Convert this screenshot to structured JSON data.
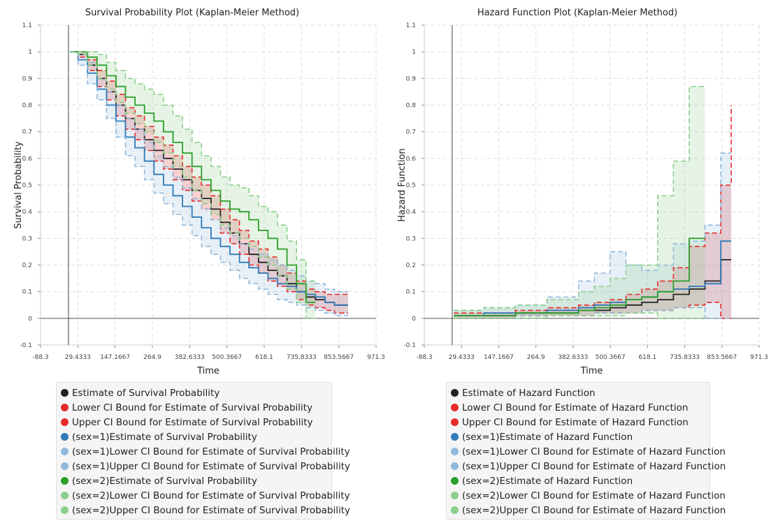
{
  "colors": {
    "overall": "#222222",
    "ci": "#e52b2b",
    "s1": "#2f7ab8",
    "s1ci": "#92b9db",
    "s2": "#2aa02a",
    "s2ci": "#8ccf8c"
  },
  "chart_data": [
    {
      "type": "line",
      "title": "Survival Probability Plot (Kaplan-Meier Method)",
      "xlabel": "Time",
      "ylabel": "Survival Probability",
      "xlim": [
        -88.3,
        971.3
      ],
      "ylim": [
        -0.1,
        1.1
      ],
      "x_ticks": [
        "-88.3",
        "29.4333",
        "147.1667",
        "264.9",
        "382.6333",
        "500.3667",
        "618.1",
        "735.8333",
        "853.5667",
        "971.3"
      ],
      "y_ticks": [
        "-0.1",
        "0",
        "0.1",
        "0.2",
        "0.3",
        "0.4",
        "0.5",
        "0.6",
        "0.7",
        "0.8",
        "0.9",
        "1",
        "1.1"
      ],
      "grid": true,
      "legend_position": "bottom",
      "series": [
        {
          "name": "Estimate of Survival Probability",
          "color": "overall",
          "dash": false,
          "x": [
            5,
            30,
            60,
            90,
            120,
            150,
            180,
            210,
            240,
            270,
            300,
            330,
            360,
            390,
            420,
            450,
            480,
            510,
            540,
            570,
            600,
            630,
            660,
            690,
            720,
            750,
            780,
            810,
            840,
            883
          ],
          "y": [
            1.0,
            0.99,
            0.95,
            0.9,
            0.85,
            0.8,
            0.75,
            0.71,
            0.67,
            0.63,
            0.6,
            0.56,
            0.52,
            0.48,
            0.45,
            0.41,
            0.36,
            0.32,
            0.28,
            0.24,
            0.21,
            0.18,
            0.16,
            0.13,
            0.1,
            0.08,
            0.07,
            0.06,
            0.05,
            0.05
          ]
        },
        {
          "name": "Lower CI Bound for Estimate of Survival Probability",
          "color": "ci",
          "dash": true,
          "x": [
            5,
            30,
            60,
            90,
            120,
            150,
            180,
            210,
            240,
            270,
            300,
            330,
            360,
            390,
            420,
            450,
            480,
            510,
            540,
            570,
            600,
            630,
            660,
            690,
            720,
            750,
            780,
            810,
            840,
            883
          ],
          "y": [
            1.0,
            0.98,
            0.93,
            0.87,
            0.82,
            0.76,
            0.71,
            0.67,
            0.63,
            0.59,
            0.56,
            0.52,
            0.48,
            0.44,
            0.41,
            0.37,
            0.32,
            0.28,
            0.24,
            0.2,
            0.17,
            0.14,
            0.12,
            0.1,
            0.07,
            0.05,
            0.04,
            0.03,
            0.02,
            0.02
          ]
        },
        {
          "name": "Upper CI Bound for Estimate of Survival Probability",
          "color": "ci",
          "dash": true,
          "x": [
            5,
            30,
            60,
            90,
            120,
            150,
            180,
            210,
            240,
            270,
            300,
            330,
            360,
            390,
            420,
            450,
            480,
            510,
            540,
            570,
            600,
            630,
            660,
            690,
            720,
            750,
            780,
            810,
            840,
            883
          ],
          "y": [
            1.0,
            1.0,
            0.97,
            0.93,
            0.89,
            0.84,
            0.79,
            0.76,
            0.72,
            0.68,
            0.65,
            0.61,
            0.57,
            0.53,
            0.5,
            0.46,
            0.41,
            0.37,
            0.33,
            0.29,
            0.26,
            0.23,
            0.2,
            0.17,
            0.14,
            0.11,
            0.1,
            0.09,
            0.09,
            0.09
          ]
        },
        {
          "name": "(sex=1)Estimate of Survival Probability",
          "color": "s1",
          "dash": false,
          "x": [
            5,
            30,
            60,
            90,
            120,
            150,
            180,
            210,
            240,
            270,
            300,
            330,
            360,
            390,
            420,
            450,
            480,
            510,
            540,
            570,
            600,
            630,
            660,
            690,
            720,
            750,
            780,
            810,
            840,
            883
          ],
          "y": [
            1.0,
            0.97,
            0.92,
            0.86,
            0.8,
            0.74,
            0.68,
            0.64,
            0.59,
            0.54,
            0.5,
            0.46,
            0.42,
            0.38,
            0.34,
            0.3,
            0.27,
            0.24,
            0.21,
            0.19,
            0.17,
            0.15,
            0.13,
            0.12,
            0.1,
            0.09,
            0.08,
            0.06,
            0.05,
            0.05
          ]
        },
        {
          "name": "(sex=1)Lower CI Bound for Estimate of Survival Probability",
          "color": "s1ci",
          "dash": true,
          "x": [
            5,
            30,
            60,
            90,
            120,
            150,
            180,
            210,
            240,
            270,
            300,
            330,
            360,
            390,
            420,
            450,
            480,
            510,
            540,
            570,
            600,
            630,
            660,
            690,
            720,
            750,
            780,
            810,
            840,
            883
          ],
          "y": [
            1.0,
            0.95,
            0.88,
            0.82,
            0.75,
            0.68,
            0.61,
            0.57,
            0.52,
            0.47,
            0.43,
            0.39,
            0.35,
            0.31,
            0.27,
            0.24,
            0.21,
            0.18,
            0.15,
            0.13,
            0.11,
            0.09,
            0.07,
            0.06,
            0.05,
            0.04,
            0.03,
            0.02,
            0.01,
            0.01
          ]
        },
        {
          "name": "(sex=1)Upper CI Bound for Estimate of Survival Probability",
          "color": "s1ci",
          "dash": true,
          "x": [
            5,
            30,
            60,
            90,
            120,
            150,
            180,
            210,
            240,
            270,
            300,
            330,
            360,
            390,
            420,
            450,
            480,
            510,
            540,
            570,
            600,
            630,
            660,
            690,
            720,
            750,
            780,
            810,
            840,
            883
          ],
          "y": [
            1.0,
            0.99,
            0.96,
            0.9,
            0.85,
            0.8,
            0.75,
            0.71,
            0.66,
            0.61,
            0.57,
            0.53,
            0.49,
            0.45,
            0.41,
            0.37,
            0.34,
            0.31,
            0.28,
            0.26,
            0.24,
            0.22,
            0.2,
            0.18,
            0.16,
            0.14,
            0.13,
            0.11,
            0.1,
            0.1
          ]
        },
        {
          "name": "(sex=2)Estimate of Survival Probability",
          "color": "s2",
          "dash": false,
          "x": [
            5,
            30,
            60,
            90,
            120,
            150,
            180,
            210,
            240,
            270,
            300,
            330,
            360,
            390,
            420,
            450,
            480,
            510,
            540,
            570,
            600,
            630,
            660,
            690,
            720,
            750,
            780
          ],
          "y": [
            1.0,
            1.0,
            0.98,
            0.95,
            0.91,
            0.87,
            0.83,
            0.8,
            0.77,
            0.74,
            0.7,
            0.66,
            0.62,
            0.57,
            0.52,
            0.48,
            0.44,
            0.41,
            0.4,
            0.37,
            0.33,
            0.3,
            0.26,
            0.2,
            0.13,
            0.06,
            0.06
          ]
        },
        {
          "name": "(sex=2)Lower CI Bound for Estimate of Survival Probability",
          "color": "s2ci",
          "dash": true,
          "x": [
            5,
            30,
            60,
            90,
            120,
            150,
            180,
            210,
            240,
            270,
            300,
            330,
            360,
            390,
            420,
            450,
            480,
            510,
            540,
            570,
            600,
            630,
            660,
            690,
            720,
            750,
            780
          ],
          "y": [
            1.0,
            0.99,
            0.95,
            0.9,
            0.86,
            0.81,
            0.77,
            0.73,
            0.7,
            0.66,
            0.62,
            0.57,
            0.53,
            0.48,
            0.43,
            0.39,
            0.35,
            0.32,
            0.3,
            0.27,
            0.23,
            0.2,
            0.16,
            0.11,
            0.06,
            0.0,
            0.0
          ]
        },
        {
          "name": "(sex=2)Upper CI Bound for Estimate of Survival Probability",
          "color": "s2ci",
          "dash": true,
          "x": [
            5,
            30,
            60,
            90,
            120,
            150,
            180,
            210,
            240,
            270,
            300,
            330,
            360,
            390,
            420,
            450,
            480,
            510,
            540,
            570,
            600,
            630,
            660,
            690,
            720,
            750,
            780
          ],
          "y": [
            1.0,
            1.0,
            1.0,
            0.99,
            0.96,
            0.93,
            0.9,
            0.88,
            0.86,
            0.84,
            0.8,
            0.76,
            0.71,
            0.66,
            0.61,
            0.57,
            0.53,
            0.5,
            0.49,
            0.46,
            0.42,
            0.4,
            0.35,
            0.29,
            0.22,
            0.14,
            0.14
          ]
        }
      ]
    },
    {
      "type": "line",
      "title": "Hazard Function Plot (Kaplan-Meier Method)",
      "xlabel": "Time",
      "ylabel": "Hazard Function",
      "xlim": [
        -88.3,
        971.3
      ],
      "ylim": [
        -0.1,
        1.1
      ],
      "x_ticks": [
        "-88.3",
        "29.4333",
        "147.1667",
        "264.9",
        "382.6333",
        "500.3667",
        "618.1",
        "735.8333",
        "853.5667",
        "971.3"
      ],
      "y_ticks": [
        "-0.1",
        "0",
        "0.1",
        "0.2",
        "0.3",
        "0.4",
        "0.5",
        "0.6",
        "0.7",
        "0.8",
        "0.9",
        "1",
        "1.1"
      ],
      "grid": true,
      "legend_position": "bottom",
      "series": [
        {
          "name": "Estimate of Hazard Function",
          "color": "overall",
          "dash": false,
          "x": [
            5,
            100,
            200,
            300,
            400,
            450,
            500,
            550,
            600,
            650,
            700,
            750,
            800,
            850,
            883
          ],
          "y": [
            0.01,
            0.01,
            0.02,
            0.02,
            0.03,
            0.03,
            0.04,
            0.05,
            0.06,
            0.07,
            0.09,
            0.11,
            0.14,
            0.22,
            0.22
          ]
        },
        {
          "name": "Lower CI Bound for Estimate of Hazard Function",
          "color": "ci",
          "dash": true,
          "x": [
            5,
            100,
            200,
            300,
            400,
            450,
            500,
            550,
            600,
            650,
            700,
            750,
            800,
            850,
            883
          ],
          "y": [
            0.0,
            0.0,
            0.01,
            0.01,
            0.01,
            0.02,
            0.02,
            0.02,
            0.03,
            0.03,
            0.04,
            0.05,
            0.06,
            0.0,
            0.0
          ]
        },
        {
          "name": "Upper CI Bound for Estimate of Hazard Function",
          "color": "ci",
          "dash": true,
          "x": [
            5,
            100,
            200,
            300,
            400,
            450,
            500,
            550,
            600,
            650,
            700,
            750,
            800,
            850,
            883
          ],
          "y": [
            0.02,
            0.02,
            0.03,
            0.04,
            0.05,
            0.06,
            0.07,
            0.09,
            0.11,
            0.14,
            0.19,
            0.27,
            0.32,
            0.5,
            0.8
          ]
        },
        {
          "name": "(sex=1)Estimate of Hazard Function",
          "color": "s1",
          "dash": false,
          "x": [
            5,
            100,
            200,
            300,
            400,
            450,
            500,
            550,
            600,
            650,
            700,
            750,
            800,
            850,
            883
          ],
          "y": [
            0.01,
            0.02,
            0.02,
            0.03,
            0.04,
            0.05,
            0.06,
            0.07,
            0.08,
            0.1,
            0.11,
            0.12,
            0.13,
            0.29,
            0.29
          ]
        },
        {
          "name": "(sex=1)Lower CI Bound for Estimate of Hazard Function",
          "color": "s1ci",
          "dash": true,
          "x": [
            5,
            100,
            200,
            300,
            400,
            450,
            500,
            550,
            600,
            650,
            700,
            750,
            800,
            850,
            883
          ],
          "y": [
            0.0,
            0.0,
            0.01,
            0.01,
            0.01,
            0.02,
            0.02,
            0.02,
            0.03,
            0.03,
            0.04,
            0.04,
            0.0,
            0.0,
            0.0
          ]
        },
        {
          "name": "(sex=1)Upper CI Bound for Estimate of Hazard Function",
          "color": "s1ci",
          "dash": true,
          "x": [
            5,
            100,
            200,
            300,
            400,
            450,
            500,
            550,
            600,
            650,
            700,
            750,
            800,
            850,
            883
          ],
          "y": [
            0.03,
            0.04,
            0.05,
            0.08,
            0.14,
            0.17,
            0.25,
            0.2,
            0.18,
            0.2,
            0.28,
            0.29,
            0.35,
            0.62,
            0.62
          ]
        },
        {
          "name": "(sex=2)Estimate of Hazard Function",
          "color": "s2",
          "dash": false,
          "x": [
            5,
            100,
            200,
            300,
            400,
            450,
            500,
            550,
            600,
            650,
            700,
            750,
            800
          ],
          "y": [
            0.01,
            0.01,
            0.02,
            0.02,
            0.03,
            0.04,
            0.05,
            0.07,
            0.08,
            0.1,
            0.14,
            0.3,
            0.3
          ]
        },
        {
          "name": "(sex=2)Lower CI Bound for Estimate of Hazard Function",
          "color": "s2ci",
          "dash": true,
          "x": [
            5,
            100,
            200,
            300,
            400,
            450,
            500,
            550,
            600,
            650,
            700,
            750,
            800
          ],
          "y": [
            0.0,
            0.0,
            0.0,
            0.01,
            0.01,
            0.01,
            0.01,
            0.02,
            0.02,
            0.0,
            0.0,
            0.0,
            0.0
          ]
        },
        {
          "name": "(sex=2)Upper CI Bound for Estimate of Hazard Function",
          "color": "s2ci",
          "dash": true,
          "x": [
            5,
            100,
            200,
            300,
            400,
            450,
            500,
            550,
            600,
            650,
            700,
            750,
            800
          ],
          "y": [
            0.03,
            0.04,
            0.05,
            0.07,
            0.1,
            0.12,
            0.15,
            0.2,
            0.2,
            0.46,
            0.59,
            0.87,
            0.87
          ]
        }
      ]
    }
  ]
}
